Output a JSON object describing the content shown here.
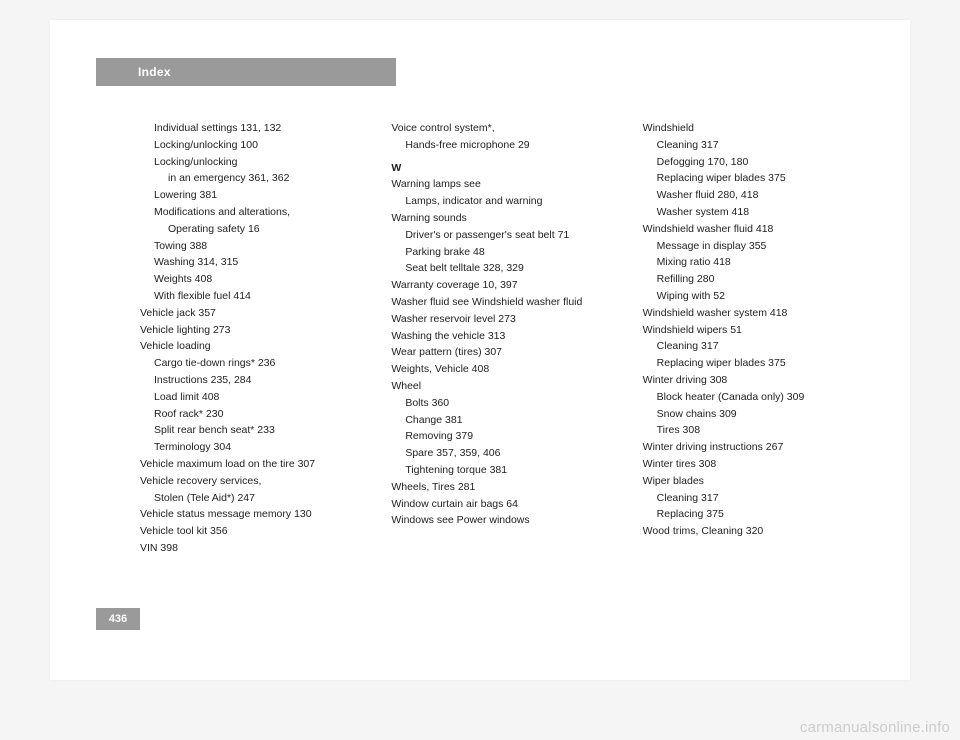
{
  "header": {
    "title": "Index"
  },
  "page_number": "436",
  "watermark": "carmanualsonline.info",
  "columns": [
    [
      {
        "indent": 1,
        "text": "Individual settings   131, 132"
      },
      {
        "indent": 1,
        "text": "Locking/unlocking   100"
      },
      {
        "indent": 1,
        "text": "Locking/unlocking"
      },
      {
        "indent": 2,
        "text": "in an emergency   361, 362"
      },
      {
        "indent": 1,
        "text": "Lowering   381"
      },
      {
        "indent": 1,
        "text": "Modifications and alterations,"
      },
      {
        "indent": 2,
        "text": "Operating safety   16"
      },
      {
        "indent": 1,
        "text": "Towing   388"
      },
      {
        "indent": 1,
        "text": "Washing   314, 315"
      },
      {
        "indent": 1,
        "text": "Weights   408"
      },
      {
        "indent": 1,
        "text": "With flexible fuel   414"
      },
      {
        "indent": 0,
        "text": "Vehicle jack   357"
      },
      {
        "indent": 0,
        "text": "Vehicle lighting   273"
      },
      {
        "indent": 0,
        "text": "Vehicle loading"
      },
      {
        "indent": 1,
        "text": "Cargo tie-down rings*   236"
      },
      {
        "indent": 1,
        "text": "Instructions   235, 284"
      },
      {
        "indent": 1,
        "text": "Load limit   408"
      },
      {
        "indent": 1,
        "text": "Roof rack*   230"
      },
      {
        "indent": 1,
        "text": "Split rear bench seat*   233"
      },
      {
        "indent": 1,
        "text": "Terminology   304"
      },
      {
        "indent": 0,
        "text": "Vehicle maximum load on the tire   307"
      },
      {
        "indent": 0,
        "text": "Vehicle recovery services,"
      },
      {
        "indent": 1,
        "text": "Stolen (Tele Aid*)   247"
      },
      {
        "indent": 0,
        "text": "Vehicle status message memory   130"
      },
      {
        "indent": 0,
        "text": "Vehicle tool kit   356"
      },
      {
        "indent": 0,
        "text": "VIN   398"
      }
    ],
    [
      {
        "indent": 0,
        "text": "Voice control system*,"
      },
      {
        "indent": 1,
        "text": "Hands-free microphone   29"
      },
      {
        "indent": 0,
        "text": "W",
        "section": true
      },
      {
        "indent": 0,
        "text": "Warning lamps see"
      },
      {
        "indent": 1,
        "text": "Lamps, indicator and warning"
      },
      {
        "indent": 0,
        "text": "Warning sounds"
      },
      {
        "indent": 1,
        "text": "Driver's or passenger's seat belt   71"
      },
      {
        "indent": 1,
        "text": "Parking brake   48"
      },
      {
        "indent": 1,
        "text": "Seat belt telltale   328, 329"
      },
      {
        "indent": 0,
        "text": "Warranty coverage   10, 397"
      },
      {
        "indent": 0,
        "text": "Washer fluid see Windshield washer fluid"
      },
      {
        "indent": 0,
        "text": "Washer reservoir level   273"
      },
      {
        "indent": 0,
        "text": "Washing the vehicle   313"
      },
      {
        "indent": 0,
        "text": "Wear pattern (tires)   307"
      },
      {
        "indent": 0,
        "text": "Weights, Vehicle   408"
      },
      {
        "indent": 0,
        "text": "Wheel"
      },
      {
        "indent": 1,
        "text": "Bolts   360"
      },
      {
        "indent": 1,
        "text": "Change   381"
      },
      {
        "indent": 1,
        "text": "Removing   379"
      },
      {
        "indent": 1,
        "text": "Spare   357, 359, 406"
      },
      {
        "indent": 1,
        "text": "Tightening torque   381"
      },
      {
        "indent": 0,
        "text": "Wheels, Tires   281"
      },
      {
        "indent": 0,
        "text": "Window curtain air bags   64"
      },
      {
        "indent": 0,
        "text": "Windows see Power windows"
      }
    ],
    [
      {
        "indent": 0,
        "text": "Windshield"
      },
      {
        "indent": 1,
        "text": "Cleaning   317"
      },
      {
        "indent": 1,
        "text": "Defogging   170, 180"
      },
      {
        "indent": 1,
        "text": "Replacing wiper blades   375"
      },
      {
        "indent": 1,
        "text": "Washer fluid   280, 418"
      },
      {
        "indent": 1,
        "text": "Washer system   418"
      },
      {
        "indent": 0,
        "text": "Windshield washer fluid   418"
      },
      {
        "indent": 1,
        "text": "Message in display   355"
      },
      {
        "indent": 1,
        "text": "Mixing ratio   418"
      },
      {
        "indent": 1,
        "text": "Refilling   280"
      },
      {
        "indent": 1,
        "text": "Wiping with   52"
      },
      {
        "indent": 0,
        "text": "Windshield washer system   418"
      },
      {
        "indent": 0,
        "text": "Windshield wipers   51"
      },
      {
        "indent": 1,
        "text": "Cleaning   317"
      },
      {
        "indent": 1,
        "text": "Replacing wiper blades   375"
      },
      {
        "indent": 0,
        "text": "Winter driving   308"
      },
      {
        "indent": 1,
        "text": "Block heater (Canada only)   309"
      },
      {
        "indent": 1,
        "text": "Snow chains   309"
      },
      {
        "indent": 1,
        "text": "Tires   308"
      },
      {
        "indent": 0,
        "text": "Winter driving instructions   267"
      },
      {
        "indent": 0,
        "text": "Winter tires   308"
      },
      {
        "indent": 0,
        "text": "Wiper blades"
      },
      {
        "indent": 1,
        "text": "Cleaning   317"
      },
      {
        "indent": 1,
        "text": "Replacing   375"
      },
      {
        "indent": 0,
        "text": "Wood trims, Cleaning   320"
      }
    ]
  ]
}
